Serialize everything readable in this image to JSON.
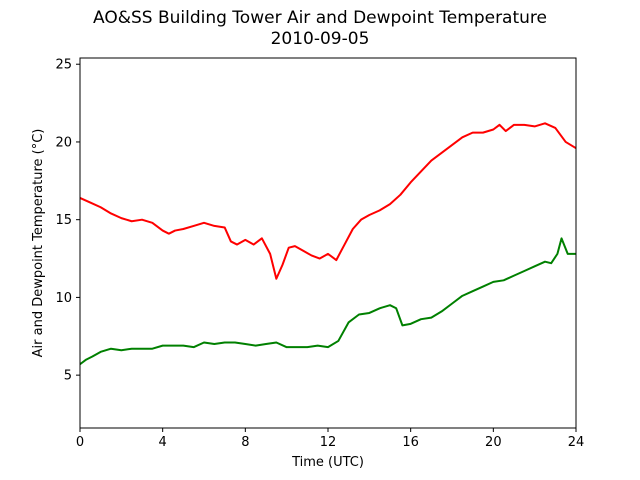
{
  "chart_data": {
    "type": "line",
    "title": "AO&SS Building Tower Air and Dewpoint Temperature",
    "subtitle": "2010-09-05",
    "xlabel": "Time (UTC)",
    "ylabel": "Air and Dewpoint Temperature (°C)",
    "xlim": [
      0,
      24
    ],
    "ylim": [
      1.6,
      25.4
    ],
    "xticks": [
      0,
      4,
      8,
      12,
      16,
      20,
      24
    ],
    "yticks": [
      5,
      10,
      15,
      20,
      25
    ],
    "grid": false,
    "legend": "none",
    "series": [
      {
        "color": "#ff0000",
        "x": [
          0,
          0.5,
          1,
          1.5,
          2,
          2.5,
          3,
          3.5,
          4,
          4.3,
          4.6,
          5,
          5.5,
          6,
          6.5,
          7,
          7.3,
          7.6,
          8,
          8.4,
          8.8,
          9.2,
          9.5,
          9.8,
          10.1,
          10.4,
          10.8,
          11.2,
          11.6,
          12,
          12.4,
          12.8,
          13.2,
          13.6,
          14,
          14.5,
          15,
          15.5,
          16,
          16.5,
          17,
          17.5,
          18,
          18.5,
          19,
          19.5,
          20,
          20.3,
          20.6,
          21,
          21.5,
          22,
          22.5,
          23,
          23.5,
          24
        ],
        "y": [
          16.4,
          16.1,
          15.8,
          15.4,
          15.1,
          14.9,
          15.0,
          14.8,
          14.3,
          14.1,
          14.3,
          14.4,
          14.6,
          14.8,
          14.6,
          14.5,
          13.6,
          13.4,
          13.7,
          13.4,
          13.8,
          12.8,
          11.2,
          12.1,
          13.2,
          13.3,
          13.0,
          12.7,
          12.5,
          12.8,
          12.4,
          13.4,
          14.4,
          15.0,
          15.3,
          15.6,
          16.0,
          16.6,
          17.4,
          18.1,
          18.8,
          19.3,
          19.8,
          20.3,
          20.6,
          20.6,
          20.8,
          21.1,
          20.7,
          21.1,
          21.1,
          21.0,
          21.2,
          20.9,
          20.0,
          19.6
        ]
      },
      {
        "color": "#008000",
        "x": [
          0,
          0.3,
          0.6,
          1,
          1.5,
          2,
          2.5,
          3,
          3.5,
          4,
          4.5,
          5,
          5.5,
          6,
          6.5,
          7,
          7.5,
          8,
          8.5,
          9,
          9.5,
          10,
          10.5,
          11,
          11.5,
          12,
          12.5,
          13,
          13.5,
          14,
          14.5,
          15,
          15.3,
          15.6,
          16,
          16.5,
          17,
          17.5,
          18,
          18.5,
          19,
          19.5,
          20,
          20.5,
          21,
          21.5,
          22,
          22.5,
          22.8,
          23.1,
          23.3,
          23.6,
          24
        ],
        "y": [
          5.7,
          6.0,
          6.2,
          6.5,
          6.7,
          6.6,
          6.7,
          6.7,
          6.7,
          6.9,
          6.9,
          6.9,
          6.8,
          7.1,
          7.0,
          7.1,
          7.1,
          7.0,
          6.9,
          7.0,
          7.1,
          6.8,
          6.8,
          6.8,
          6.9,
          6.8,
          7.2,
          8.4,
          8.9,
          9.0,
          9.3,
          9.5,
          9.3,
          8.2,
          8.3,
          8.6,
          8.7,
          9.1,
          9.6,
          10.1,
          10.4,
          10.7,
          11.0,
          11.1,
          11.4,
          11.7,
          12.0,
          12.3,
          12.2,
          12.8,
          13.8,
          12.8,
          12.8
        ]
      }
    ]
  }
}
